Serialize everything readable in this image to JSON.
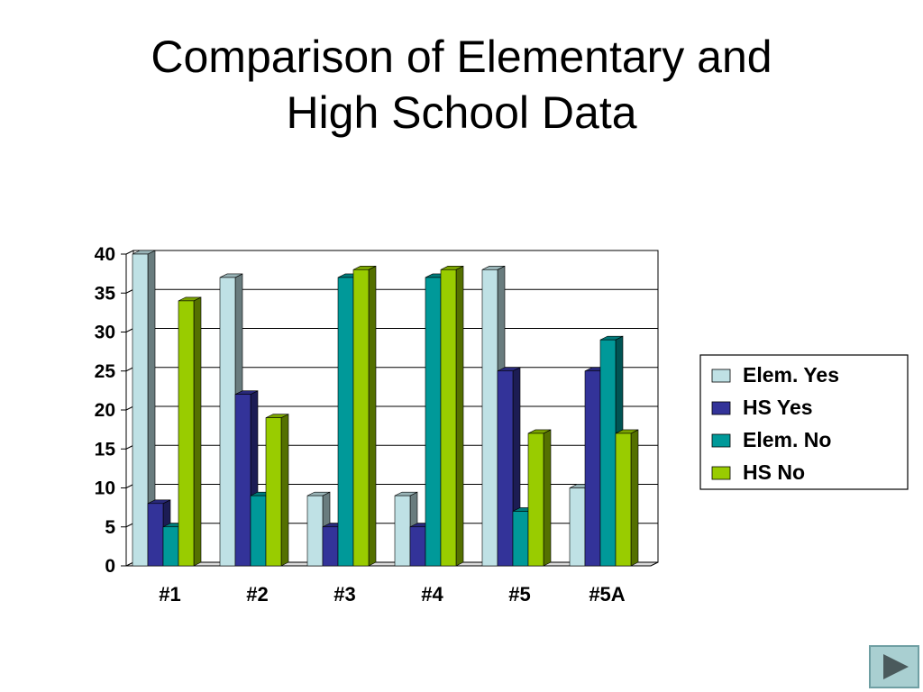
{
  "slide": {
    "title_line1": "Comparison of Elementary and",
    "title_line2": "High School Data"
  },
  "nav": {
    "next_icon": "play-triangle-icon"
  },
  "colors": {
    "elem_yes": "#bfe1e5",
    "hs_yes": "#333399",
    "elem_no": "#009999",
    "hs_no": "#99cc00",
    "grid": "#000000",
    "legend_border": "#000000"
  },
  "chart_data": {
    "type": "bar",
    "title": "",
    "xlabel": "",
    "ylabel": "",
    "categories": [
      "#1",
      "#2",
      "#3",
      "#4",
      "#5",
      "#5A"
    ],
    "ylim": [
      0,
      40
    ],
    "yticks": [
      0,
      5,
      10,
      15,
      20,
      25,
      30,
      35,
      40
    ],
    "grid": true,
    "legend_position": "right",
    "series": [
      {
        "name": "Elem. Yes",
        "color_key": "elem_yes",
        "values": [
          40,
          37,
          9,
          9,
          38,
          10
        ]
      },
      {
        "name": "HS Yes",
        "color_key": "hs_yes",
        "values": [
          8,
          22,
          5,
          5,
          25,
          25
        ]
      },
      {
        "name": "Elem. No",
        "color_key": "elem_no",
        "values": [
          5,
          9,
          37,
          37,
          7,
          29
        ]
      },
      {
        "name": "HS No",
        "color_key": "hs_no",
        "values": [
          34,
          19,
          38,
          38,
          17,
          17
        ]
      }
    ]
  }
}
